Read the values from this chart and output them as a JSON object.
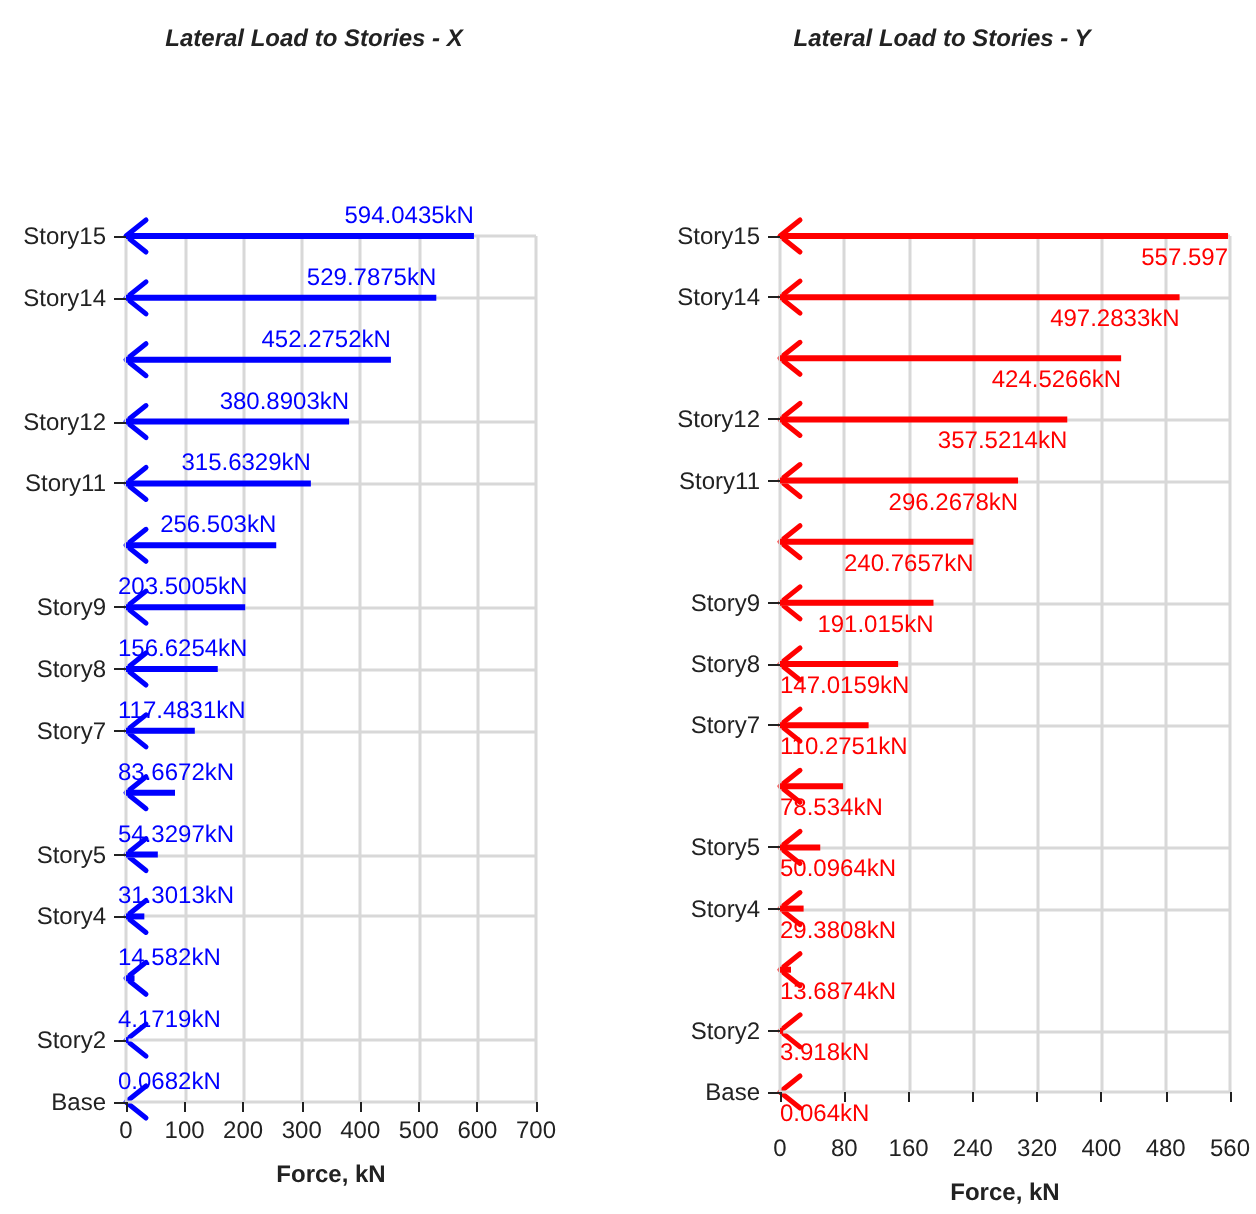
{
  "chart_data": [
    {
      "type": "bar",
      "orientation": "horizontal",
      "title": "Lateral Load to Stories - X",
      "xlabel": "Force, kN",
      "categories": [
        "Story15",
        "Story14",
        null,
        "Story12",
        "Story11",
        null,
        "Story9",
        "Story8",
        "Story7",
        null,
        "Story5",
        "Story4",
        null,
        "Story2",
        "Base"
      ],
      "series": [
        {
          "color": "#0000ff",
          "values": [
            594.0435,
            529.7875,
            452.2752,
            380.8903,
            315.6329,
            256.503,
            203.5005,
            156.6254,
            117.4831,
            83.6672,
            54.3297,
            31.3013,
            14.582,
            4.1719,
            0.0682
          ],
          "value_labels": [
            "594.0435kN",
            "529.7875kN",
            "452.2752kN",
            "380.8903kN",
            "315.6329kN",
            "256.503kN",
            "203.5005kN",
            "156.6254kN",
            "117.4831kN",
            "83.6672kN",
            "54.3297kN",
            "31.3013kN",
            "14.582kN",
            "4.1719kN",
            "0.0682kN"
          ]
        }
      ],
      "xlim": [
        0,
        700
      ],
      "xticks": [
        0,
        100,
        200,
        300,
        400,
        500,
        600,
        700
      ],
      "grid": true
    },
    {
      "type": "bar",
      "orientation": "horizontal",
      "title": "Lateral Load to Stories - Y",
      "xlabel": "Force, kN",
      "categories": [
        "Story15",
        "Story14",
        null,
        "Story12",
        "Story11",
        null,
        "Story9",
        "Story8",
        "Story7",
        null,
        "Story5",
        "Story4",
        null,
        "Story2",
        "Base"
      ],
      "series": [
        {
          "color": "#ff0000",
          "values": [
            557.597,
            497.2833,
            424.5266,
            357.5214,
            296.2678,
            240.7657,
            191.015,
            147.0159,
            110.2751,
            78.534,
            50.0964,
            29.3808,
            13.6874,
            3.918,
            0.064
          ],
          "value_labels": [
            "557.597",
            "497.2833kN",
            "424.5266kN",
            "357.5214kN",
            "296.2678kN",
            "240.7657kN",
            "191.015kN",
            "147.0159kN",
            "110.2751kN",
            "78.534kN",
            "50.0964kN",
            "29.3808kN",
            "13.6874kN",
            "3.918kN",
            "0.064kN"
          ]
        }
      ],
      "xlim": [
        0,
        560
      ],
      "xticks": [
        0,
        80,
        160,
        240,
        320,
        400,
        480,
        560
      ],
      "grid": true
    }
  ]
}
